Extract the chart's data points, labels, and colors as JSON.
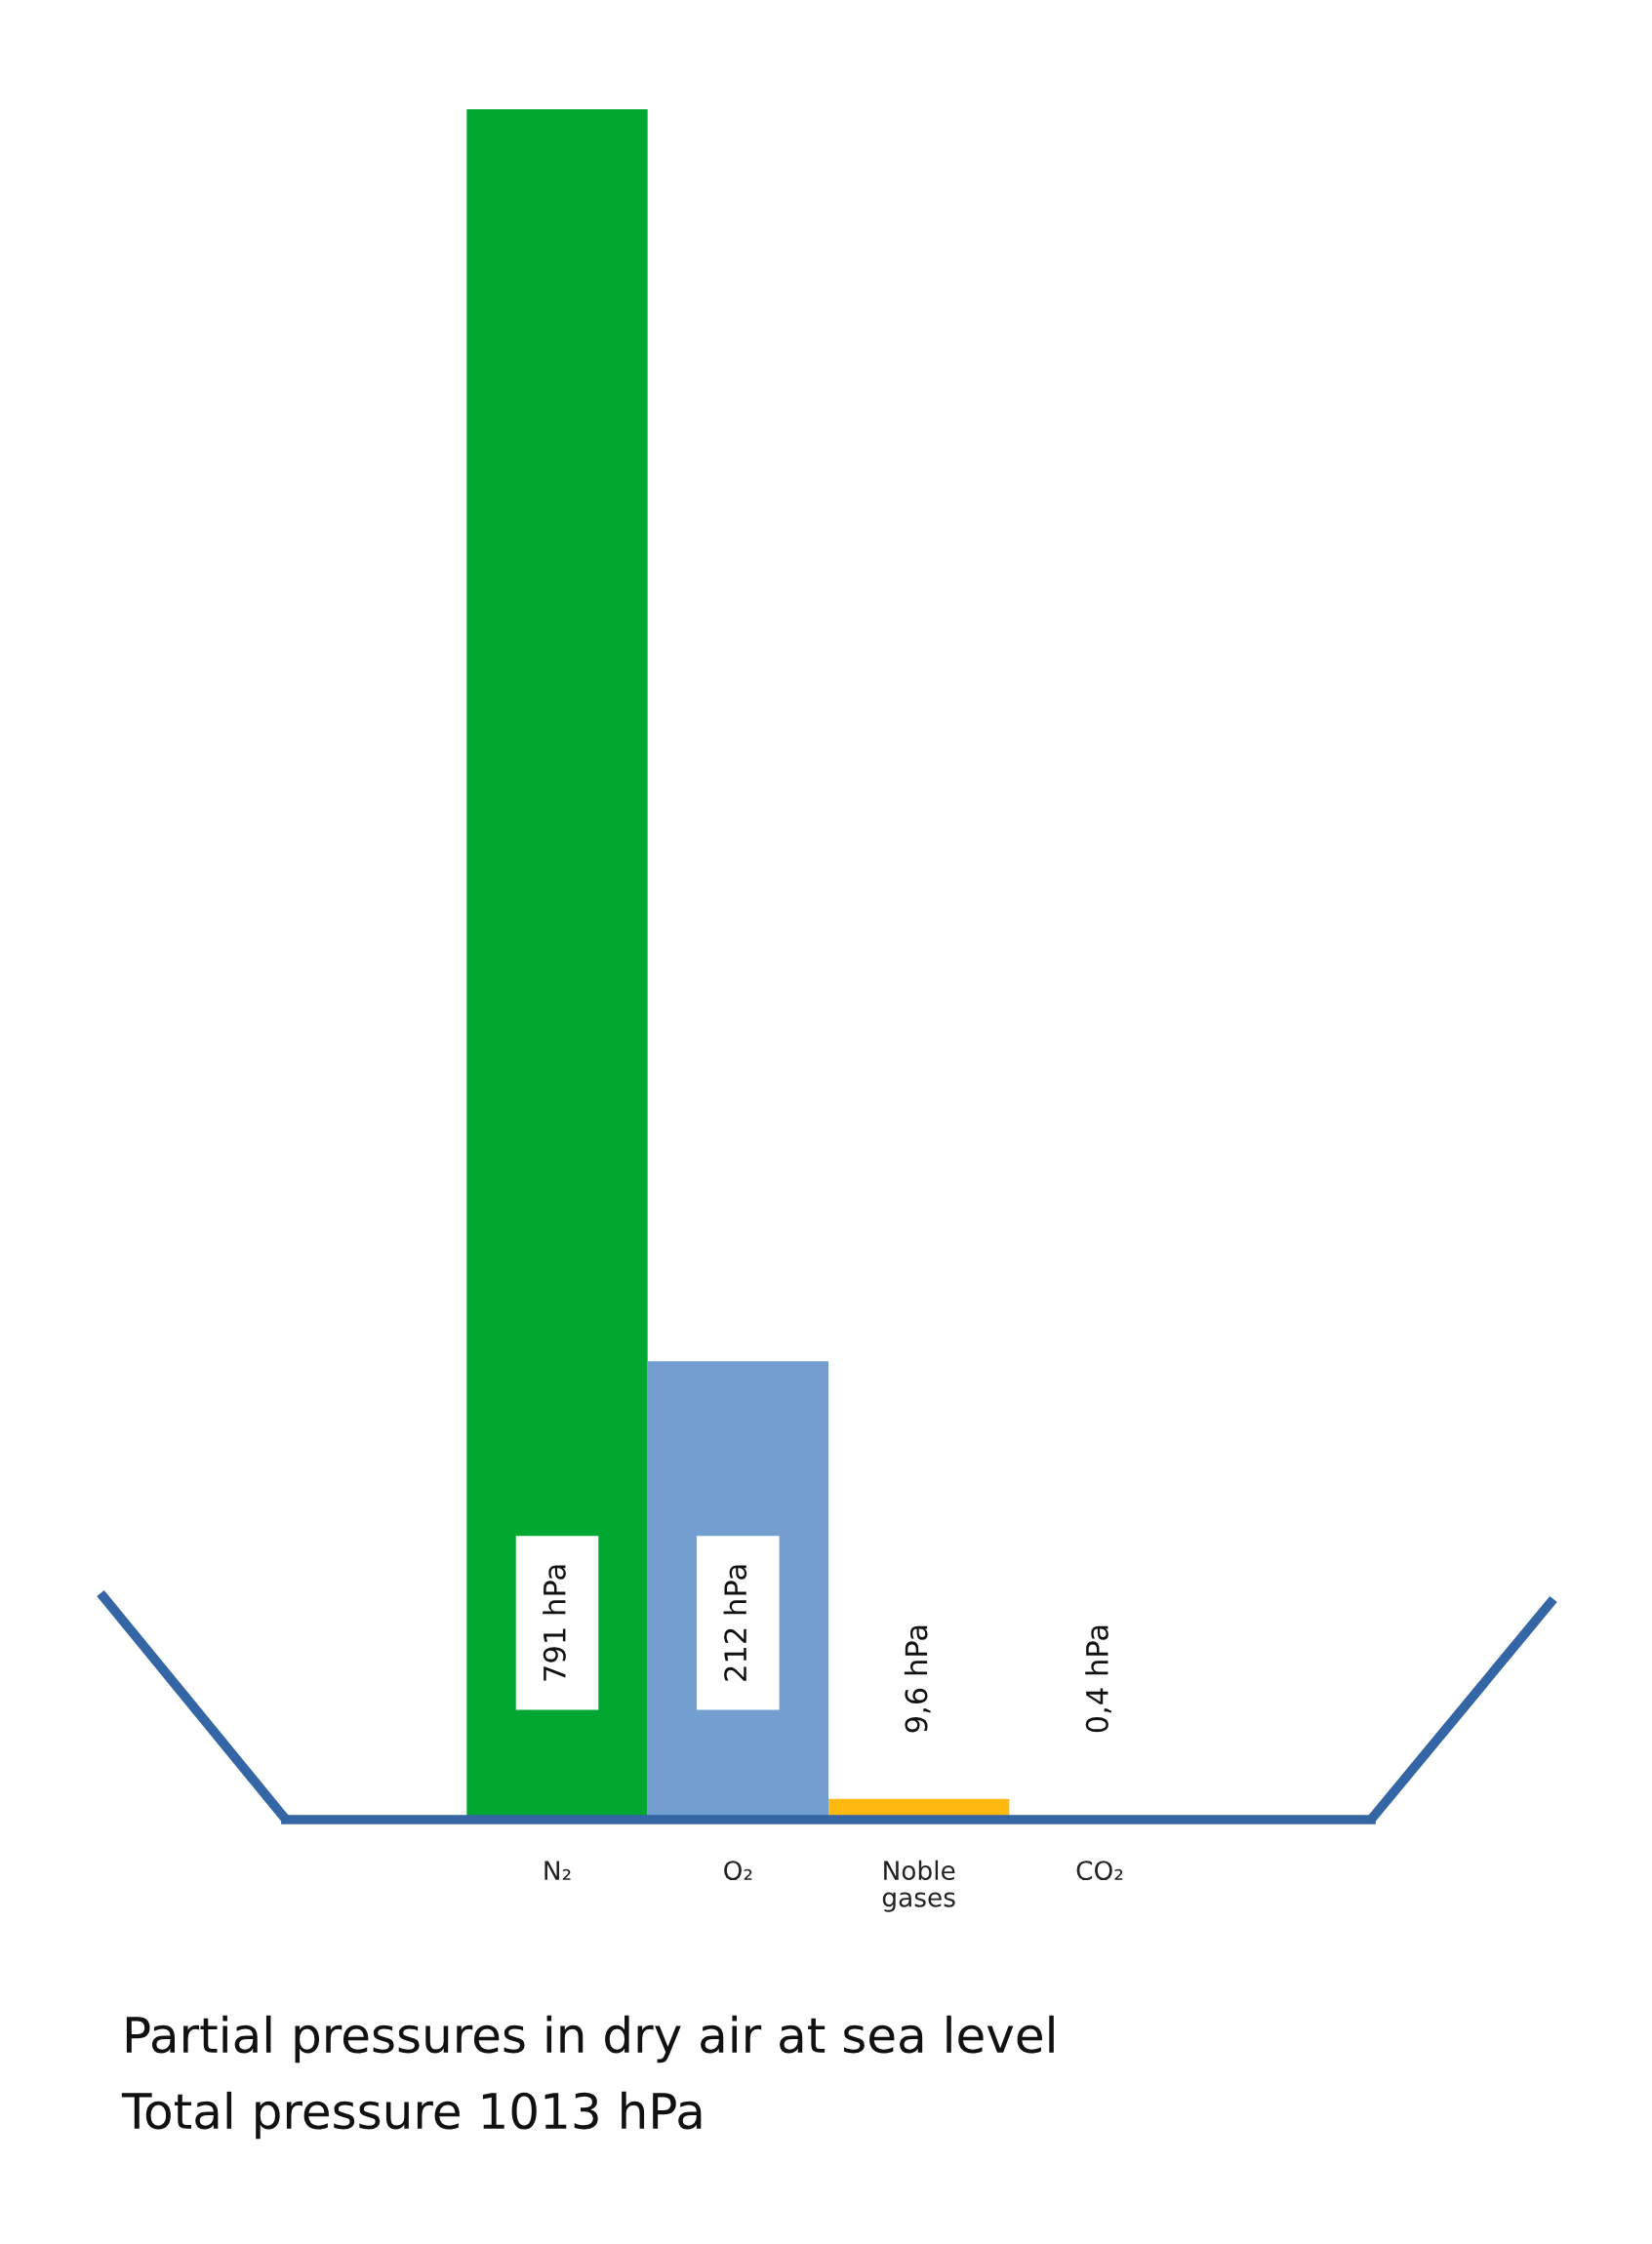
{
  "chart_data": {
    "type": "bar",
    "title": "Partial pressures in dry air at sea level",
    "subtitle": "Total pressure 1013 hPa",
    "categories": [
      "N₂",
      "O₂",
      "Noble\ngases",
      "CO₂"
    ],
    "values": [
      791,
      212,
      9.6,
      0.4
    ],
    "colors": [
      "#00a832",
      "#729fcf",
      "#ffb90f",
      "#c0c0c0"
    ],
    "value_labels": [
      "791 hPa",
      "212 hPa",
      "9,6 hPa",
      "0,4 hPa"
    ],
    "grid": false,
    "legend": false
  }
}
